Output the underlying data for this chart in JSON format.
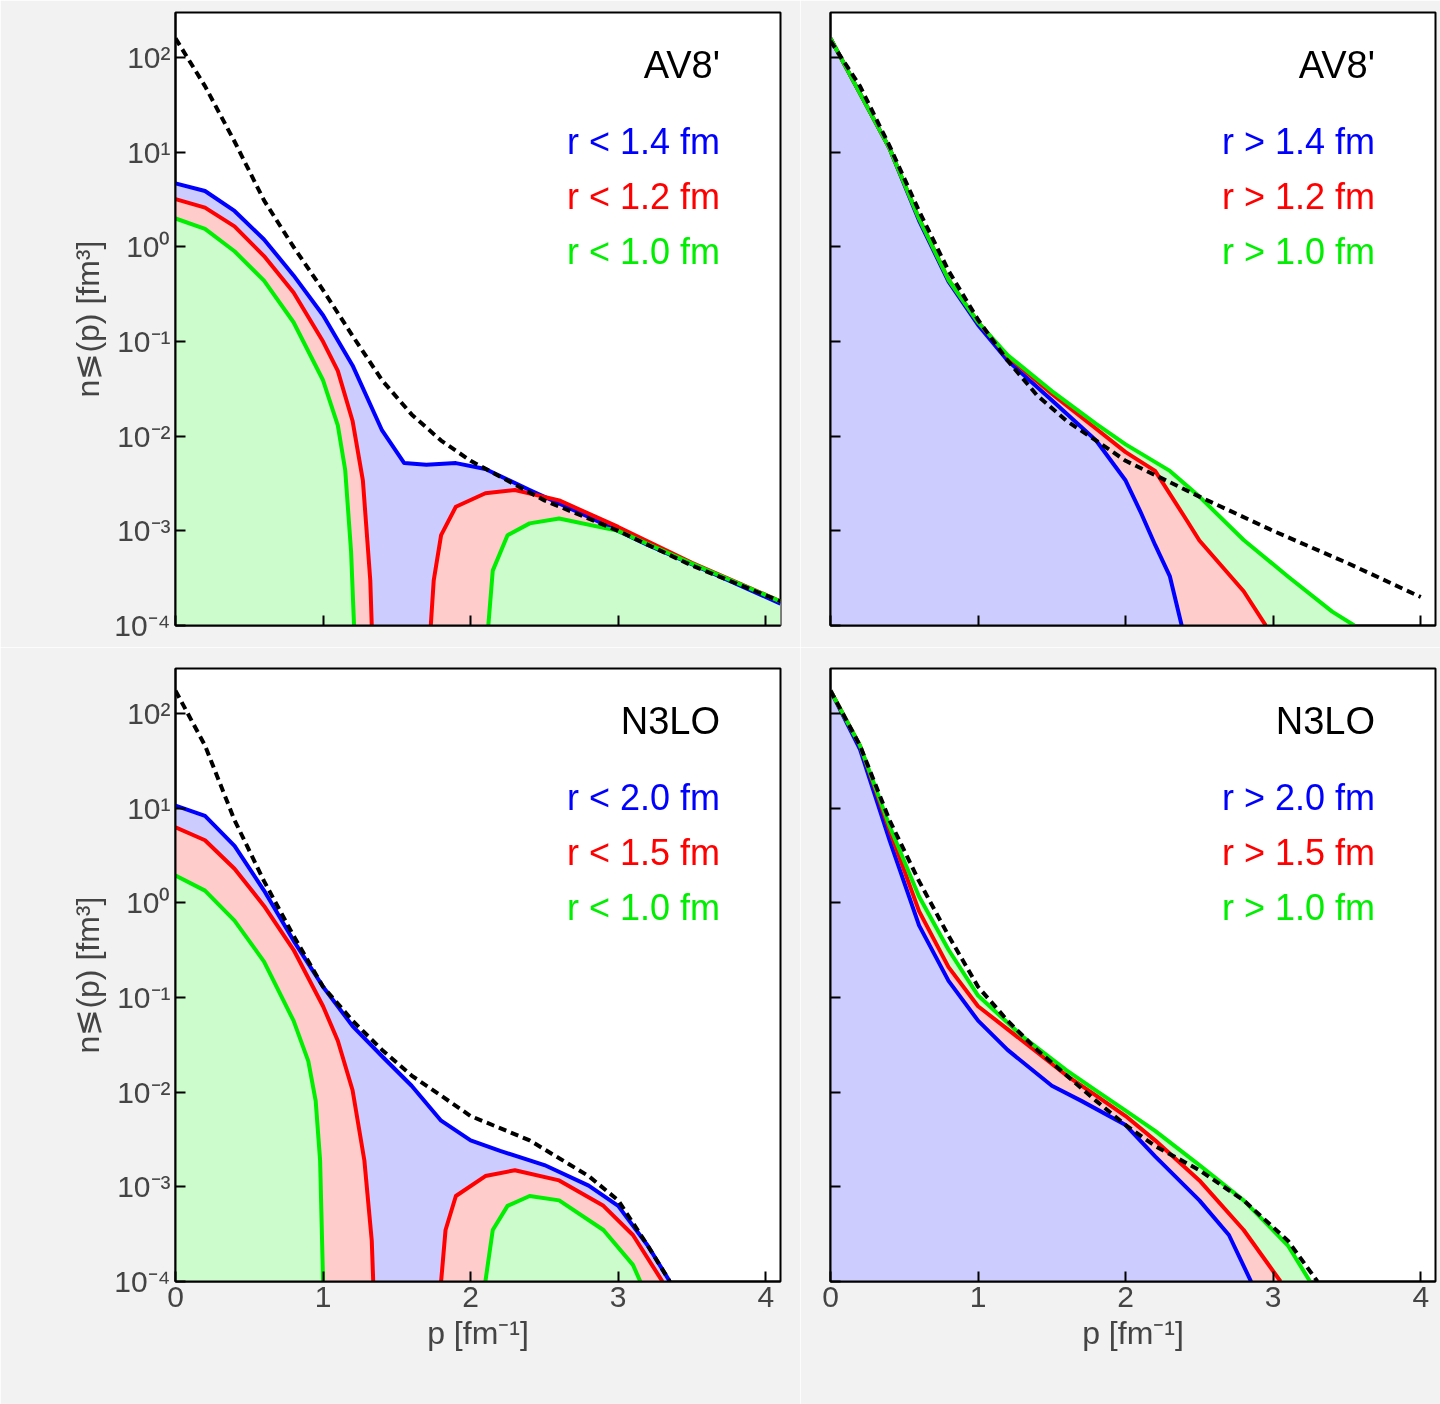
{
  "chart_data": [
    {
      "type": "area",
      "title": "AV8'",
      "ylabel": "n≶(p) [fm³]",
      "xlim": [
        0,
        4.1
      ],
      "ylim": [
        0.0001,
        300
      ],
      "xticks": [
        0,
        1,
        2,
        3,
        4
      ],
      "yticks": [
        {
          "value": 0.0001,
          "label": "10⁻⁴"
        },
        {
          "value": 0.001,
          "label": "10⁻³"
        },
        {
          "value": 0.01,
          "label": "10⁻²"
        },
        {
          "value": 0.1,
          "label": "10⁻¹"
        },
        {
          "value": 1,
          "label": "10⁰"
        },
        {
          "value": 10,
          "label": "10¹"
        },
        {
          "value": 100,
          "label": "10²"
        }
      ],
      "log": "y",
      "grid": false,
      "legend": "top right",
      "tick_labels": "y",
      "series": [
        {
          "name": "r < 1.4 fm",
          "color": "#0000ff",
          "x": [
            0,
            0.2,
            0.4,
            0.6,
            0.8,
            1.0,
            1.2,
            1.4,
            1.55,
            1.7,
            1.9,
            2.1,
            2.4,
            2.8,
            3.2,
            3.6,
            4.1
          ],
          "values": [
            4.7,
            3.9,
            2.4,
            1.2,
            0.5,
            0.19,
            0.056,
            0.0115,
            0.0052,
            0.005,
            0.0052,
            0.0045,
            0.0027,
            0.0014,
            0.00071,
            0.00038,
            0.00017
          ]
        },
        {
          "name": "r < 1.2 fm",
          "color": "#ff0000",
          "x": [
            0,
            0.2,
            0.4,
            0.6,
            0.8,
            1.0,
            1.1,
            1.2,
            1.27,
            1.32,
            1.33,
            1.5,
            1.73,
            1.75,
            1.8,
            1.9,
            2.1,
            2.3,
            2.6,
            3.0,
            3.5,
            4.1
          ],
          "values": [
            3.2,
            2.6,
            1.65,
            0.8,
            0.33,
            0.1,
            0.049,
            0.0145,
            0.0034,
            0.0003,
            0.0001,
            null,
            0.0001,
            0.0003,
            0.0009,
            0.0018,
            0.0025,
            0.0027,
            0.0021,
            0.0011,
            0.00046,
            0.00018
          ]
        },
        {
          "name": "r < 1.0 fm",
          "color": "#00ee00",
          "x": [
            0,
            0.2,
            0.4,
            0.6,
            0.8,
            1.0,
            1.1,
            1.15,
            1.19,
            1.21,
            1.6,
            2.12,
            2.15,
            2.25,
            2.4,
            2.6,
            3.0,
            3.5,
            4.1
          ],
          "values": [
            2.0,
            1.55,
            0.9,
            0.44,
            0.16,
            0.039,
            0.013,
            0.0044,
            0.0006,
            0.0001,
            null,
            0.0001,
            0.00038,
            0.0009,
            0.0012,
            0.00135,
            0.001,
            0.00045,
            0.00018
          ]
        },
        {
          "type": "line",
          "color": "#000000",
          "line_style": "dashed",
          "x": [
            0,
            0.2,
            0.4,
            0.6,
            0.8,
            1.0,
            1.2,
            1.4,
            1.6,
            1.8,
            2.0,
            2.5,
            3.0,
            3.5,
            4.1
          ],
          "values": [
            160,
            50,
            13,
            3.1,
            1.0,
            0.35,
            0.115,
            0.039,
            0.017,
            0.009,
            0.0055,
            0.0021,
            0.001,
            0.00043,
            0.00018
          ]
        }
      ]
    },
    {
      "type": "area",
      "title": "AV8'",
      "xlim": [
        0,
        4.1
      ],
      "ylim": [
        0.0001,
        300
      ],
      "xticks": [
        0,
        1,
        2,
        3,
        4
      ],
      "yticks": [
        {
          "value": 0.0001,
          "label": null
        },
        {
          "value": 0.001,
          "label": null
        },
        {
          "value": 0.01,
          "label": null
        },
        {
          "value": 0.1,
          "label": null
        },
        {
          "value": 1,
          "label": null
        },
        {
          "value": 10,
          "label": null
        },
        {
          "value": 100,
          "label": null
        }
      ],
      "log": "y",
      "grid": false,
      "legend": "top right",
      "tick_labels": false,
      "series": [
        {
          "name": "r > 1.4 fm",
          "color": "#0000ff",
          "x": [
            0,
            0.4,
            0.6,
            0.8,
            1.0,
            1.2,
            1.5,
            1.8,
            2.0,
            2.1,
            2.2,
            2.3,
            2.38
          ],
          "values": [
            160,
            11,
            1.9,
            0.43,
            0.15,
            0.063,
            0.024,
            0.009,
            0.0034,
            0.0016,
            0.00071,
            0.00033,
            0.0001
          ]
        },
        {
          "name": "r > 1.2 fm",
          "color": "#ff0000",
          "x": [
            0,
            0.4,
            0.6,
            0.8,
            1.0,
            1.2,
            1.5,
            1.8,
            2.0,
            2.2,
            2.4,
            2.5,
            2.8,
            2.95
          ],
          "values": [
            160,
            11,
            2.0,
            0.45,
            0.16,
            0.07,
            0.028,
            0.012,
            0.0068,
            0.0043,
            0.0014,
            0.00079,
            0.00023,
            0.0001
          ]
        },
        {
          "name": "r > 1.0 fm",
          "color": "#00ee00",
          "x": [
            0,
            0.4,
            0.6,
            0.8,
            1.0,
            1.2,
            1.5,
            1.8,
            2.0,
            2.3,
            2.5,
            2.8,
            3.1,
            3.4,
            3.55
          ],
          "values": [
            160,
            11,
            2.0,
            0.45,
            0.16,
            0.072,
            0.03,
            0.0135,
            0.0082,
            0.0043,
            0.0023,
            0.0008,
            0.00033,
            0.00014,
            0.0001
          ]
        },
        {
          "type": "line",
          "color": "#000000",
          "line_style": "dashed",
          "x": [
            0,
            0.2,
            0.4,
            0.6,
            0.8,
            1.0,
            1.2,
            1.4,
            1.6,
            1.8,
            2.0,
            2.5,
            3.0,
            3.5,
            4.0
          ],
          "values": [
            150,
            50,
            11.7,
            2.4,
            0.56,
            0.17,
            0.063,
            0.027,
            0.0145,
            0.009,
            0.0055,
            0.0023,
            0.001,
            0.00046,
            0.0002
          ]
        }
      ]
    },
    {
      "type": "area",
      "title": "N3LO",
      "xlabel": "p [fm⁻¹]",
      "ylabel": "n≶(p) [fm³]",
      "xlim": [
        0,
        4.1
      ],
      "ylim": [
        0.0001,
        300
      ],
      "xticks": [
        0,
        1,
        2,
        3,
        4
      ],
      "yticks": [
        {
          "value": 0.0001,
          "label": "10⁻⁴"
        },
        {
          "value": 0.001,
          "label": "10⁻³"
        },
        {
          "value": 0.01,
          "label": "10⁻²"
        },
        {
          "value": 0.1,
          "label": "10⁻¹"
        },
        {
          "value": 1,
          "label": "10⁰"
        },
        {
          "value": 10,
          "label": "10¹"
        },
        {
          "value": 100,
          "label": "10²"
        }
      ],
      "log": "y",
      "grid": false,
      "legend": "top right",
      "series": [
        {
          "name": "r < 2.0 fm",
          "color": "#0000ff",
          "x": [
            0,
            0.2,
            0.4,
            0.6,
            0.8,
            1.0,
            1.2,
            1.4,
            1.6,
            1.8,
            2.0,
            2.2,
            2.5,
            2.8,
            3.0,
            3.2,
            3.35
          ],
          "values": [
            10.7,
            8.3,
            4.0,
            1.35,
            0.4,
            0.13,
            0.05,
            0.024,
            0.0117,
            0.005,
            0.0031,
            0.0024,
            0.0017,
            0.00103,
            0.00063,
            0.00024,
            0.0001
          ]
        },
        {
          "name": "r < 1.5 fm",
          "color": "#ff0000",
          "x": [
            0,
            0.2,
            0.4,
            0.6,
            0.8,
            1.0,
            1.1,
            1.2,
            1.28,
            1.33,
            1.34,
            1.6,
            1.8,
            1.83,
            1.9,
            2.1,
            2.3,
            2.6,
            2.9,
            3.1,
            3.3
          ],
          "values": [
            6.3,
            4.6,
            2.3,
            0.93,
            0.32,
            0.081,
            0.035,
            0.0105,
            0.0019,
            0.00027,
            0.0001,
            null,
            0.0001,
            0.00035,
            0.0008,
            0.0013,
            0.0015,
            0.00117,
            0.00063,
            0.00031,
            0.0001
          ]
        },
        {
          "name": "r < 1.0 fm",
          "color": "#00ee00",
          "x": [
            0,
            0.2,
            0.4,
            0.6,
            0.8,
            0.9,
            0.95,
            0.98,
            1.0,
            1.5,
            2.1,
            2.15,
            2.25,
            2.4,
            2.6,
            2.9,
            3.1,
            3.15
          ],
          "values": [
            1.95,
            1.35,
            0.65,
            0.24,
            0.057,
            0.0213,
            0.0081,
            0.0019,
            0.0001,
            null,
            0.0001,
            0.00035,
            0.00063,
            0.0008,
            0.00072,
            0.00035,
            0.00015,
            0.0001
          ]
        },
        {
          "type": "line",
          "color": "#000000",
          "line_style": "dashed",
          "x": [
            0,
            0.2,
            0.4,
            0.6,
            0.8,
            1.0,
            1.2,
            1.4,
            1.6,
            1.8,
            2.0,
            2.4,
            2.8,
            3.0,
            3.2,
            3.35
          ],
          "values": [
            175,
            46,
            7.5,
            1.7,
            0.45,
            0.13,
            0.057,
            0.028,
            0.015,
            0.0092,
            0.0056,
            0.0031,
            0.0013,
            0.00072,
            0.00024,
            0.0001
          ]
        }
      ]
    },
    {
      "type": "area",
      "title": "N3LO",
      "xlabel": "p [fm⁻¹]",
      "xlim": [
        0,
        4.1
      ],
      "ylim": [
        0.0001,
        300
      ],
      "xticks": [
        0,
        1,
        2,
        3,
        4
      ],
      "yticks": [
        {
          "value": 0.0001,
          "label": null
        },
        {
          "value": 0.001,
          "label": null
        },
        {
          "value": 0.01,
          "label": null
        },
        {
          "value": 0.1,
          "label": null
        },
        {
          "value": 1,
          "label": null
        },
        {
          "value": 10,
          "label": null
        },
        {
          "value": 100,
          "label": null
        }
      ],
      "log": "y",
      "grid": false,
      "legend": "top right",
      "tick_labels": "x",
      "series": [
        {
          "name": "r > 2.0 fm",
          "color": "#0000ff",
          "x": [
            0,
            0.2,
            0.4,
            0.6,
            0.8,
            1.0,
            1.2,
            1.5,
            1.7,
            2.0,
            2.2,
            2.5,
            2.7,
            2.85
          ],
          "values": [
            175,
            42,
            4.6,
            0.58,
            0.15,
            0.057,
            0.028,
            0.0117,
            0.0081,
            0.0045,
            0.0021,
            0.00072,
            0.00031,
            0.0001
          ]
        },
        {
          "name": "r > 1.5 fm",
          "color": "#ff0000",
          "x": [
            0,
            0.2,
            0.4,
            0.6,
            0.8,
            1.0,
            1.3,
            1.6,
            1.8,
            2.0,
            2.2,
            2.5,
            2.8,
            3.05
          ],
          "values": [
            175,
            46,
            5.9,
            0.82,
            0.21,
            0.081,
            0.035,
            0.015,
            0.0092,
            0.0056,
            0.0031,
            0.00117,
            0.00035,
            0.0001
          ]
        },
        {
          "name": "r > 1.0 fm",
          "color": "#00ee00",
          "x": [
            0,
            0.2,
            0.4,
            0.6,
            0.8,
            1.0,
            1.3,
            1.6,
            1.8,
            2.0,
            2.2,
            2.5,
            2.8,
            3.1,
            3.25
          ],
          "values": [
            175,
            46,
            6.5,
            1.17,
            0.32,
            0.105,
            0.039,
            0.017,
            0.0104,
            0.0064,
            0.0039,
            0.0017,
            0.00072,
            0.00024,
            0.0001
          ]
        },
        {
          "type": "line",
          "color": "#000000",
          "line_style": "dashed",
          "x": [
            0,
            0.2,
            0.4,
            0.6,
            0.8,
            1.0,
            1.2,
            1.4,
            1.8,
            2.0,
            2.2,
            2.5,
            2.8,
            3.1,
            3.3
          ],
          "values": [
            175,
            46,
            7.5,
            1.7,
            0.45,
            0.13,
            0.057,
            0.028,
            0.0081,
            0.0045,
            0.0027,
            0.0015,
            0.00072,
            0.00027,
            0.0001
          ]
        }
      ]
    }
  ]
}
